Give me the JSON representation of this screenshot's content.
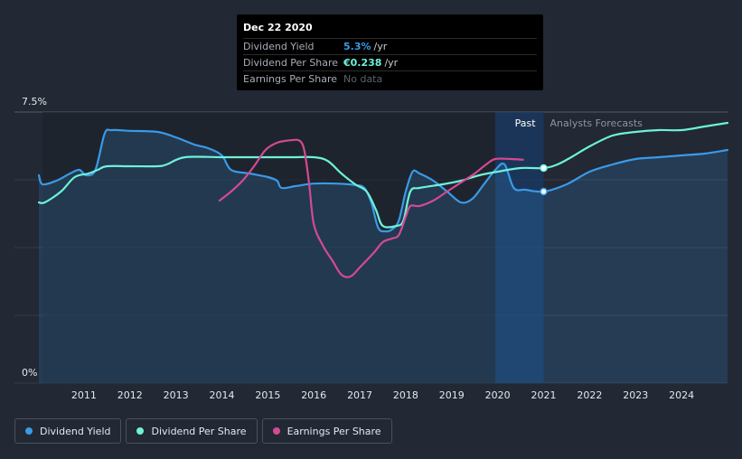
{
  "tooltip": {
    "date": "Dec 22 2020",
    "rows": [
      {
        "label": "Dividend Yield",
        "value": "5.3%",
        "unit": "/yr",
        "color": "#3a9ae8"
      },
      {
        "label": "Dividend Per Share",
        "value": "€0.238",
        "unit": "/yr",
        "color": "#6ef1d9"
      },
      {
        "label": "Earnings Per Share",
        "value": "No data",
        "unit": "",
        "color": "#5d626b"
      }
    ]
  },
  "legend": [
    {
      "label": "Dividend Yield",
      "color": "#3a9ae8"
    },
    {
      "label": "Dividend Per Share",
      "color": "#6ef1d9"
    },
    {
      "label": "Earnings Per Share",
      "color": "#d44a92"
    }
  ],
  "chart_data": {
    "type": "line",
    "title": "",
    "xlabel": "",
    "ylabel": "",
    "ylim": [
      0,
      7.5
    ],
    "xlim": [
      2010.0,
      2025.0
    ],
    "y_tick_labels": [
      {
        "value": 7.5,
        "label": "7.5%"
      },
      {
        "value": 0,
        "label": "0%"
      }
    ],
    "x_ticks": [
      2011,
      2012,
      2013,
      2014,
      2015,
      2016,
      2017,
      2018,
      2019,
      2020,
      2021,
      2022,
      2023,
      2024
    ],
    "past_label": "Past",
    "forecast_label": "Analysts Forecasts",
    "past_region": [
      2019.95,
      2021.0
    ],
    "present_x": 2021.0,
    "grid": true,
    "legend_position": "bottom-left",
    "series": [
      {
        "name": "Dividend Yield",
        "color": "#3a9ae8",
        "area": true,
        "points": [
          [
            2010.02,
            5.75
          ],
          [
            2010.1,
            5.5
          ],
          [
            2010.4,
            5.6
          ],
          [
            2010.7,
            5.8
          ],
          [
            2010.9,
            5.9
          ],
          [
            2011.05,
            5.75
          ],
          [
            2011.25,
            5.9
          ],
          [
            2011.45,
            6.9
          ],
          [
            2011.6,
            7.0
          ],
          [
            2012.0,
            6.98
          ],
          [
            2012.6,
            6.95
          ],
          [
            2013.0,
            6.8
          ],
          [
            2013.4,
            6.6
          ],
          [
            2013.7,
            6.5
          ],
          [
            2014.0,
            6.3
          ],
          [
            2014.2,
            5.9
          ],
          [
            2014.6,
            5.8
          ],
          [
            2015.0,
            5.7
          ],
          [
            2015.2,
            5.6
          ],
          [
            2015.3,
            5.4
          ],
          [
            2015.6,
            5.45
          ],
          [
            2016.0,
            5.52
          ],
          [
            2016.5,
            5.52
          ],
          [
            2016.9,
            5.48
          ],
          [
            2017.1,
            5.4
          ],
          [
            2017.25,
            5.0
          ],
          [
            2017.4,
            4.3
          ],
          [
            2017.55,
            4.2
          ],
          [
            2017.7,
            4.25
          ],
          [
            2017.85,
            4.5
          ],
          [
            2018.0,
            5.3
          ],
          [
            2018.15,
            5.85
          ],
          [
            2018.3,
            5.8
          ],
          [
            2018.6,
            5.6
          ],
          [
            2018.9,
            5.3
          ],
          [
            2019.2,
            5.0
          ],
          [
            2019.45,
            5.1
          ],
          [
            2019.7,
            5.5
          ],
          [
            2019.95,
            5.9
          ],
          [
            2020.15,
            6.05
          ],
          [
            2020.35,
            5.4
          ],
          [
            2020.6,
            5.35
          ],
          [
            2021.0,
            5.3
          ],
          [
            2021.5,
            5.5
          ],
          [
            2022.0,
            5.85
          ],
          [
            2022.5,
            6.05
          ],
          [
            2023.0,
            6.2
          ],
          [
            2023.5,
            6.25
          ],
          [
            2024.0,
            6.3
          ],
          [
            2024.5,
            6.35
          ],
          [
            2025.0,
            6.45
          ]
        ]
      },
      {
        "name": "Dividend Per Share",
        "color": "#6ef1d9",
        "area": false,
        "points": [
          [
            2010.02,
            5.0
          ],
          [
            2010.15,
            5.0
          ],
          [
            2010.5,
            5.3
          ],
          [
            2010.8,
            5.7
          ],
          [
            2011.1,
            5.8
          ],
          [
            2011.3,
            5.9
          ],
          [
            2011.5,
            6.0
          ],
          [
            2012.0,
            6.0
          ],
          [
            2012.6,
            6.0
          ],
          [
            2012.8,
            6.05
          ],
          [
            2013.2,
            6.25
          ],
          [
            2014.0,
            6.25
          ],
          [
            2015.0,
            6.25
          ],
          [
            2015.5,
            6.25
          ],
          [
            2016.0,
            6.25
          ],
          [
            2016.3,
            6.15
          ],
          [
            2016.6,
            5.8
          ],
          [
            2016.9,
            5.5
          ],
          [
            2017.15,
            5.3
          ],
          [
            2017.35,
            4.8
          ],
          [
            2017.5,
            4.35
          ],
          [
            2017.8,
            4.35
          ],
          [
            2017.95,
            4.5
          ],
          [
            2018.1,
            5.3
          ],
          [
            2018.3,
            5.4
          ],
          [
            2018.8,
            5.5
          ],
          [
            2019.2,
            5.6
          ],
          [
            2019.6,
            5.75
          ],
          [
            2020.0,
            5.85
          ],
          [
            2020.5,
            5.95
          ],
          [
            2021.0,
            5.95
          ],
          [
            2021.3,
            6.05
          ],
          [
            2021.6,
            6.25
          ],
          [
            2022.0,
            6.55
          ],
          [
            2022.5,
            6.85
          ],
          [
            2023.0,
            6.95
          ],
          [
            2023.5,
            7.0
          ],
          [
            2024.0,
            7.0
          ],
          [
            2024.5,
            7.1
          ],
          [
            2025.0,
            7.2
          ]
        ]
      },
      {
        "name": "Earnings Per Share",
        "color": "#d44a92",
        "area": false,
        "points": [
          [
            2013.95,
            5.05
          ],
          [
            2014.2,
            5.3
          ],
          [
            2014.45,
            5.6
          ],
          [
            2014.7,
            6.0
          ],
          [
            2014.95,
            6.45
          ],
          [
            2015.2,
            6.65
          ],
          [
            2015.5,
            6.72
          ],
          [
            2015.7,
            6.7
          ],
          [
            2015.8,
            6.4
          ],
          [
            2015.9,
            5.5
          ],
          [
            2016.0,
            4.4
          ],
          [
            2016.2,
            3.8
          ],
          [
            2016.4,
            3.4
          ],
          [
            2016.6,
            3.0
          ],
          [
            2016.8,
            2.95
          ],
          [
            2017.0,
            3.2
          ],
          [
            2017.3,
            3.6
          ],
          [
            2017.5,
            3.9
          ],
          [
            2017.7,
            4.0
          ],
          [
            2017.85,
            4.1
          ],
          [
            2018.0,
            4.6
          ],
          [
            2018.1,
            4.9
          ],
          [
            2018.3,
            4.9
          ],
          [
            2018.6,
            5.05
          ],
          [
            2018.9,
            5.3
          ],
          [
            2019.2,
            5.55
          ],
          [
            2019.5,
            5.8
          ],
          [
            2019.75,
            6.05
          ],
          [
            2019.95,
            6.2
          ],
          [
            2020.3,
            6.2
          ],
          [
            2020.55,
            6.18
          ]
        ]
      }
    ],
    "markers": [
      {
        "series": "Dividend Yield",
        "x": 2021.0,
        "y": 5.3
      },
      {
        "series": "Dividend Per Share",
        "x": 2021.0,
        "y": 5.95
      }
    ]
  }
}
